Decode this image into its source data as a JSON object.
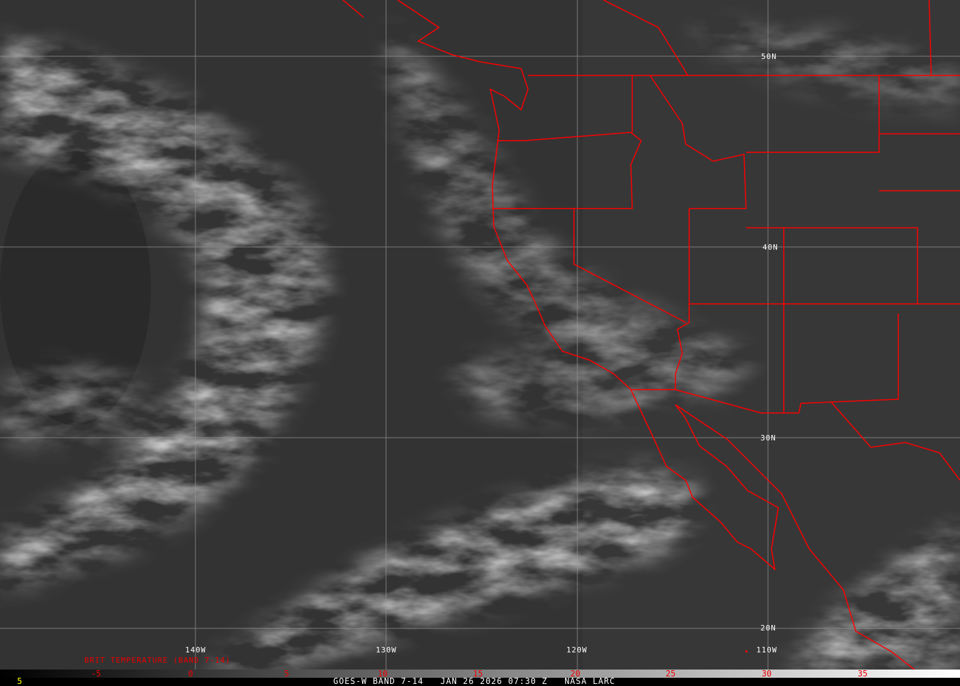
{
  "map": {
    "lat_labels": [
      "50N",
      "40N",
      "30N",
      "20N"
    ],
    "lon_labels": [
      "140W",
      "130W",
      "120W",
      "110W"
    ],
    "boundary_color": "#ff0000",
    "grid_color": "#9a9a9a"
  },
  "colorbar": {
    "title": "BRIT TEMPERATURE (BAND 7-14)",
    "ticks": [
      "-5",
      "0",
      "5",
      "10",
      "15",
      "20",
      "25",
      "30",
      "35"
    ],
    "tick_color": "#ff0000"
  },
  "footer": {
    "frame_number": "5",
    "caption": "GOES-W BAND 7-14   JAN 26 2026 07:30 Z   NASA LARC"
  }
}
